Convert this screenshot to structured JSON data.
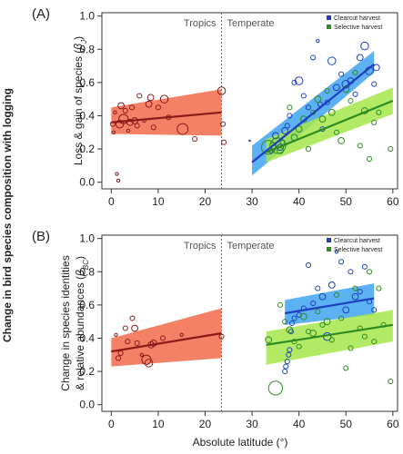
{
  "figure": {
    "shared_ylabel": "Change in bird species composition with logging",
    "xlabel": "Absolute latitude (°)"
  },
  "colors": {
    "tropics_line": "#8B1A1A",
    "tropics_band": "#F26A4B",
    "clearcut_line": "#1F3FBF",
    "clearcut_band": "#3FA3F0",
    "selective_line": "#2E8B22",
    "selective_band": "#A6E64A"
  },
  "chart_data": [
    {
      "type": "scatter",
      "panel_label": "(A)",
      "ylabel_line1": "Loss & gain of species (",
      "ylabel_sym": "βJ",
      "ylabel_line2": ")",
      "xlim": [
        -2,
        61
      ],
      "ylim": [
        -0.04,
        1.02
      ],
      "xticks": [
        0,
        10,
        20,
        30,
        40,
        50,
        60
      ],
      "yticks": [
        0.0,
        0.2,
        0.4,
        0.6,
        0.8,
        1.0
      ],
      "divider_x": 23.5,
      "zone_labels": [
        "Tropics",
        "Temperate"
      ],
      "legend": [
        {
          "label": "Clearcut harvest",
          "color": "#1F3FBF"
        },
        {
          "label": "Selective harvest",
          "color": "#2E8B22"
        }
      ],
      "series": [
        {
          "name": "Tropics",
          "color": "#8B1A1A",
          "band": "#F26A4B",
          "fit": {
            "x": [
              0,
              23.5
            ],
            "y": [
              0.36,
              0.42
            ],
            "lower": [
              0.29,
              0.28
            ],
            "upper": [
              0.45,
              0.56
            ]
          },
          "points": [
            [
              0.3,
              0.35,
              3
            ],
            [
              0.5,
              0.3,
              2
            ],
            [
              0.8,
              0.42,
              2
            ],
            [
              1.2,
              0.05,
              2
            ],
            [
              1.5,
              0.01,
              2
            ],
            [
              1.8,
              0.35,
              5
            ],
            [
              2.1,
              0.46,
              4
            ],
            [
              2.6,
              0.38,
              6
            ],
            [
              3.0,
              0.43,
              3
            ],
            [
              3.6,
              0.31,
              2
            ],
            [
              4.0,
              0.36,
              4
            ],
            [
              4.4,
              0.45,
              3
            ],
            [
              5.0,
              0.37,
              4
            ],
            [
              5.5,
              0.34,
              3
            ],
            [
              6.0,
              0.52,
              3
            ],
            [
              7.0,
              0.37,
              2
            ],
            [
              8.0,
              0.47,
              4
            ],
            [
              8.4,
              0.51,
              4
            ],
            [
              9.0,
              0.33,
              3
            ],
            [
              10.0,
              0.45,
              3
            ],
            [
              11.3,
              0.5,
              5
            ],
            [
              12.2,
              0.39,
              3
            ],
            [
              15.2,
              0.32,
              7
            ],
            [
              17.8,
              0.26,
              3
            ],
            [
              23.5,
              0.55,
              5
            ],
            [
              23.8,
              0.35,
              3
            ],
            [
              24.0,
              0.24,
              3
            ]
          ]
        },
        {
          "name": "Clearcut harvest",
          "color": "#1F3FBF",
          "band": "#3FA3F0",
          "fit": {
            "x": [
              30,
              56
            ],
            "y": [
              0.12,
              0.71
            ],
            "lower": [
              0.04,
              0.66
            ],
            "upper": [
              0.22,
              0.79
            ]
          },
          "points": [
            [
              29.5,
              0.25,
              1
            ],
            [
              34,
              0.19,
              3
            ],
            [
              35,
              0.28,
              4
            ],
            [
              36,
              0.21,
              4
            ],
            [
              36.5,
              0.24,
              3
            ],
            [
              37,
              0.31,
              4
            ],
            [
              37.5,
              0.34,
              3
            ],
            [
              38,
              0.4,
              3
            ],
            [
              39,
              0.6,
              3
            ],
            [
              40,
              0.61,
              5
            ],
            [
              41,
              0.52,
              3
            ],
            [
              42,
              0.45,
              3
            ],
            [
              43,
              0.75,
              3
            ],
            [
              44,
              0.85,
              2
            ],
            [
              44.5,
              0.47,
              3
            ],
            [
              45,
              0.32,
              3
            ],
            [
              46,
              0.48,
              3
            ],
            [
              47,
              0.73,
              5
            ],
            [
              48,
              0.57,
              4
            ],
            [
              49,
              0.65,
              3
            ],
            [
              50,
              0.59,
              5
            ],
            [
              51,
              0.61,
              4
            ],
            [
              52,
              0.53,
              3
            ],
            [
              53,
              0.75,
              4
            ],
            [
              54,
              0.82,
              5
            ],
            [
              55,
              0.67,
              5
            ],
            [
              56,
              0.59,
              3
            ],
            [
              56.5,
              0.69,
              4
            ]
          ]
        },
        {
          "name": "Selective harvest",
          "color": "#2E8B22",
          "band": "#A6E64A",
          "fit": {
            "x": [
              33,
              60
            ],
            "y": [
              0.18,
              0.49
            ],
            "lower": [
              0.12,
              0.41
            ],
            "upper": [
              0.26,
              0.57
            ]
          },
          "points": [
            [
              33.5,
              0.21,
              9
            ],
            [
              34.5,
              0.22,
              4
            ],
            [
              35.5,
              0.22,
              10
            ],
            [
              36,
              0.19,
              4
            ],
            [
              36.5,
              0.24,
              3
            ],
            [
              38,
              0.45,
              3
            ],
            [
              39,
              0.27,
              4
            ],
            [
              40,
              0.32,
              4
            ],
            [
              41,
              0.38,
              4
            ],
            [
              42,
              0.2,
              3
            ],
            [
              43,
              0.42,
              3
            ],
            [
              44,
              0.5,
              4
            ],
            [
              45,
              0.38,
              4
            ],
            [
              46,
              0.55,
              3
            ],
            [
              47,
              0.42,
              4
            ],
            [
              48,
              0.3,
              3
            ],
            [
              49,
              0.25,
              4
            ],
            [
              50,
              0.56,
              4
            ],
            [
              51,
              0.49,
              3
            ],
            [
              52,
              0.66,
              3
            ],
            [
              53,
              0.22,
              3
            ],
            [
              54,
              0.43,
              4
            ],
            [
              55,
              0.14,
              3
            ],
            [
              56,
              0.36,
              3
            ],
            [
              57,
              0.42,
              3
            ],
            [
              59.5,
              0.2,
              3
            ]
          ]
        }
      ]
    },
    {
      "type": "scatter",
      "panel_label": "(B)",
      "ylabel_line1": "Change in species identities",
      "ylabel_line2": "& relative abundances (",
      "ylabel_sym": "βBC",
      "ylabel_line3": ")",
      "xlim": [
        -2,
        61
      ],
      "ylim": [
        -0.04,
        1.02
      ],
      "xticks": [
        0,
        10,
        20,
        30,
        40,
        50,
        60
      ],
      "yticks": [
        0.0,
        0.2,
        0.4,
        0.6,
        0.8,
        1.0
      ],
      "divider_x": 23.5,
      "zone_labels": [
        "Tropics",
        "Temperate"
      ],
      "legend": [
        {
          "label": "Clearcut harvest",
          "color": "#1F3FBF"
        },
        {
          "label": "Selective harvest",
          "color": "#2E8B22"
        }
      ],
      "series": [
        {
          "name": "Tropics",
          "color": "#8B1A1A",
          "band": "#F26A4B",
          "fit": {
            "x": [
              0,
              23.5
            ],
            "y": [
              0.32,
              0.43
            ],
            "lower": [
              0.23,
              0.28
            ],
            "upper": [
              0.4,
              0.58
            ]
          },
          "points": [
            [
              1,
              0.42,
              2
            ],
            [
              1.5,
              0.28,
              3
            ],
            [
              2,
              0.31,
              3
            ],
            [
              3,
              0.46,
              3
            ],
            [
              3.5,
              0.38,
              3
            ],
            [
              4.5,
              0.52,
              3
            ],
            [
              5,
              0.46,
              4
            ],
            [
              5.5,
              0.37,
              3
            ],
            [
              6.5,
              0.3,
              2
            ],
            [
              7.5,
              0.27,
              6
            ],
            [
              8,
              0.25,
              5
            ],
            [
              8.5,
              0.36,
              4
            ],
            [
              9,
              0.37,
              4
            ],
            [
              11,
              0.4,
              3
            ],
            [
              15,
              0.42,
              2
            ],
            [
              23.5,
              0.41,
              3
            ]
          ]
        },
        {
          "name": "Clearcut harvest",
          "color": "#1F3FBF",
          "band": "#3FA3F0",
          "fit": {
            "x": [
              37,
              56
            ],
            "y": [
              0.55,
              0.64
            ],
            "lower": [
              0.48,
              0.54
            ],
            "upper": [
              0.63,
              0.73
            ]
          },
          "points": [
            [
              37,
              0.2,
              3
            ],
            [
              37.2,
              0.23,
              3
            ],
            [
              37.5,
              0.26,
              3
            ],
            [
              37.8,
              0.3,
              3
            ],
            [
              38,
              0.33,
              3
            ],
            [
              38.3,
              0.44,
              3
            ],
            [
              38.5,
              0.49,
              3
            ],
            [
              39,
              0.52,
              3
            ],
            [
              40,
              0.54,
              3
            ],
            [
              41,
              0.58,
              3
            ],
            [
              42,
              0.84,
              3
            ],
            [
              43,
              0.61,
              3
            ],
            [
              44,
              0.7,
              3
            ],
            [
              45,
              0.65,
              4
            ],
            [
              46,
              0.41,
              5
            ],
            [
              47,
              0.72,
              4
            ],
            [
              48,
              0.92,
              2
            ],
            [
              49,
              0.86,
              3
            ],
            [
              50,
              0.57,
              4
            ],
            [
              51,
              0.8,
              3
            ],
            [
              52,
              0.65,
              4
            ],
            [
              53,
              0.68,
              3
            ],
            [
              54,
              0.83,
              3
            ],
            [
              55,
              0.62,
              3
            ],
            [
              56,
              0.57,
              3
            ]
          ]
        },
        {
          "name": "Selective harvest",
          "color": "#2E8B22",
          "band": "#A6E64A",
          "fit": {
            "x": [
              33,
              60
            ],
            "y": [
              0.36,
              0.48
            ],
            "lower": [
              0.24,
              0.38
            ],
            "upper": [
              0.44,
              0.57
            ]
          },
          "points": [
            [
              33.5,
              0.39,
              4
            ],
            [
              35,
              0.1,
              9
            ],
            [
              36,
              0.6,
              3
            ],
            [
              37,
              0.5,
              3
            ],
            [
              38,
              0.45,
              4
            ],
            [
              39,
              0.38,
              3
            ],
            [
              40,
              0.35,
              3
            ],
            [
              41,
              0.53,
              4
            ],
            [
              42,
              0.44,
              3
            ],
            [
              43,
              0.43,
              4
            ],
            [
              44,
              0.56,
              3
            ],
            [
              45,
              0.48,
              3
            ],
            [
              46,
              0.5,
              4
            ],
            [
              47,
              0.39,
              3
            ],
            [
              48,
              0.66,
              3
            ],
            [
              49,
              0.52,
              3
            ],
            [
              50,
              0.22,
              3
            ],
            [
              51,
              0.34,
              3
            ],
            [
              52,
              0.7,
              3
            ],
            [
              53,
              0.46,
              3
            ],
            [
              54,
              0.41,
              3
            ],
            [
              55,
              0.8,
              3
            ],
            [
              56,
              0.38,
              3
            ],
            [
              57,
              0.7,
              3
            ],
            [
              58,
              0.48,
              3
            ],
            [
              59.5,
              0.14,
              3
            ]
          ]
        }
      ]
    }
  ]
}
